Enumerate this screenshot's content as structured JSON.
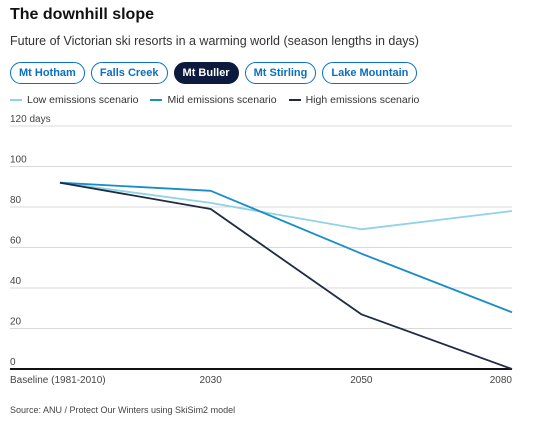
{
  "header": {
    "title": "The downhill slope",
    "subtitle": "Future of Victorian ski resorts in a warming world (season lengths in days)"
  },
  "tabs": [
    {
      "label": "Mt Hotham",
      "active": false
    },
    {
      "label": "Falls Creek",
      "active": false
    },
    {
      "label": "Mt Buller",
      "active": true
    },
    {
      "label": "Mt Stirling",
      "active": false
    },
    {
      "label": "Lake Mountain",
      "active": false
    }
  ],
  "source": "Source: ANU / Protect Our Winters using SkiSim2 model",
  "chart_data": {
    "type": "line",
    "categories": [
      "Baseline (1981-2010)",
      "2030",
      "2050",
      "2080"
    ],
    "ylim": [
      0,
      120
    ],
    "yticks": [
      0,
      20,
      40,
      60,
      80,
      100,
      120
    ],
    "ytick_labels": [
      "0",
      "20",
      "40",
      "60",
      "80",
      "100",
      "120 days"
    ],
    "grid": true,
    "legend_position": "top-left",
    "series": [
      {
        "name": "Low emissions scenario",
        "color": "#8fd3e6",
        "values": [
          92,
          82,
          69,
          78
        ]
      },
      {
        "name": "Mid emissions scenario",
        "color": "#1a8cc8",
        "values": [
          92,
          88,
          57,
          28
        ]
      },
      {
        "name": "High emissions scenario",
        "color": "#1f2a44",
        "values": [
          92,
          79,
          27,
          0
        ]
      }
    ]
  }
}
